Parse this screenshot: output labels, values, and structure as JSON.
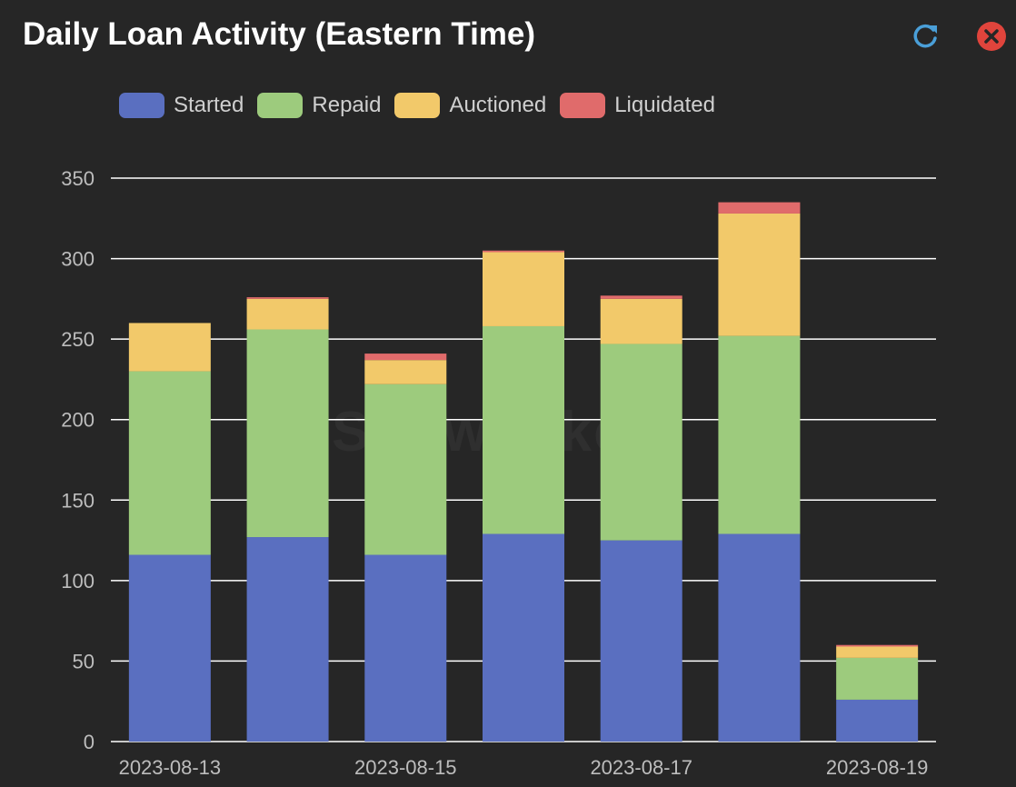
{
  "header": {
    "title": "Daily Loan Activity (Eastern Time)",
    "refresh_icon": "refresh-icon",
    "close_icon": "close-icon"
  },
  "watermark": "Snowflake",
  "colors": {
    "background": "#262626",
    "grid": "#ffffff",
    "axis_text": "#bdbdbd",
    "refresh": "#4a9fd8",
    "close": "#e0443c"
  },
  "chart_data": {
    "type": "bar",
    "stacked": true,
    "categories": [
      "2023-08-13",
      "2023-08-14",
      "2023-08-15",
      "2023-08-16",
      "2023-08-17",
      "2023-08-18",
      "2023-08-19"
    ],
    "x_tick_labels": [
      "2023-08-13",
      "",
      "2023-08-15",
      "",
      "2023-08-17",
      "",
      "2023-08-19"
    ],
    "series": [
      {
        "name": "Started",
        "color": "#5a6fc0",
        "values": [
          116,
          127,
          116,
          129,
          125,
          129,
          26
        ]
      },
      {
        "name": "Repaid",
        "color": "#9dcb7d",
        "values": [
          114,
          129,
          106,
          129,
          122,
          123,
          26
        ]
      },
      {
        "name": "Auctioned",
        "color": "#f2c96a",
        "values": [
          30,
          19,
          15,
          46,
          28,
          76,
          7
        ]
      },
      {
        "name": "Liquidated",
        "color": "#e06b6b",
        "values": [
          0,
          1,
          4,
          1,
          2,
          7,
          1
        ]
      }
    ],
    "ylim": [
      0,
      350
    ],
    "yticks": [
      0,
      50,
      100,
      150,
      200,
      250,
      300,
      350
    ],
    "grid": true,
    "legend": "top-left",
    "title": "Daily Loan Activity (Eastern Time)",
    "xlabel": "",
    "ylabel": ""
  }
}
